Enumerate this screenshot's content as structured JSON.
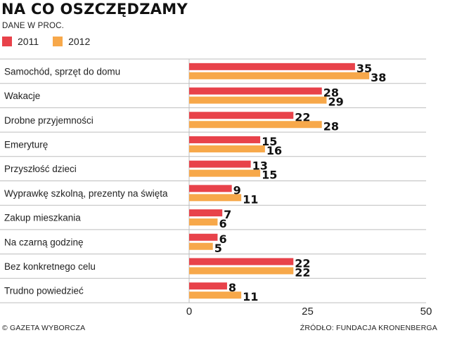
{
  "header": {
    "title": "NA CO OSZCZĘDZAMY",
    "subtitle": "DANE W PROC."
  },
  "footer": {
    "copyright": "© GAZETA WYBORCZA",
    "source": "ŹRÓDŁO: FUNDACJA KRONENBERGA"
  },
  "colors": {
    "series_2011": "#e8424a",
    "series_2012": "#f7a84a",
    "grid": "#bdbdbd"
  },
  "chart_data": {
    "type": "bar",
    "orientation": "horizontal",
    "title": "NA CO OSZCZĘDZAMY",
    "subtitle": "DANE W PROC.",
    "categories": [
      "Samochód, sprzęt do domu",
      "Wakacje",
      "Drobne przyjemności",
      "Emeryturę",
      "Przyszłość dzieci",
      "Wyprawkę szkolną, prezenty na święta",
      "Zakup mieszkania",
      "Na czarną godzinę",
      "Bez konkretnego celu",
      "Trudno powiedzieć"
    ],
    "series": [
      {
        "name": "2011",
        "values": [
          35,
          28,
          22,
          15,
          13,
          9,
          7,
          6,
          22,
          8
        ]
      },
      {
        "name": "2012",
        "values": [
          38,
          29,
          28,
          16,
          15,
          11,
          6,
          5,
          22,
          11
        ]
      }
    ],
    "xlim": [
      0,
      50
    ],
    "xticks": [
      0,
      25,
      50
    ],
    "grid": "horizontal row separators",
    "legend": "top-left",
    "data_labels": true
  }
}
